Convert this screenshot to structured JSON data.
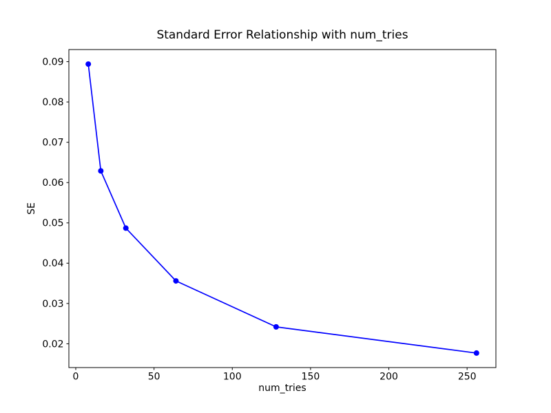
{
  "chart_data": {
    "type": "line",
    "title": "Standard Error Relationship with num_tries",
    "xlabel": "num_tries",
    "ylabel": "SE",
    "x": [
      8,
      16,
      32,
      64,
      128,
      256
    ],
    "y": [
      0.0894,
      0.0629,
      0.0487,
      0.0356,
      0.0242,
      0.0177
    ],
    "xticks": [
      0,
      50,
      100,
      150,
      200,
      250
    ],
    "xtick_labels": [
      "0",
      "50",
      "100",
      "150",
      "200",
      "250"
    ],
    "yticks": [
      0.02,
      0.03,
      0.04,
      0.05,
      0.06,
      0.07,
      0.08,
      0.09
    ],
    "ytick_labels": [
      "0.02",
      "0.03",
      "0.04",
      "0.05",
      "0.06",
      "0.07",
      "0.08",
      "0.09"
    ],
    "xlim": [
      -4.4,
      268.4
    ],
    "ylim": [
      0.0141,
      0.093
    ],
    "grid": false,
    "legend": null,
    "line_color": "#0000ff",
    "marker": "o",
    "marker_color": "#0000ff",
    "spine_color": "#000000",
    "text_color": "#000000",
    "background_color": "#ffffff"
  }
}
